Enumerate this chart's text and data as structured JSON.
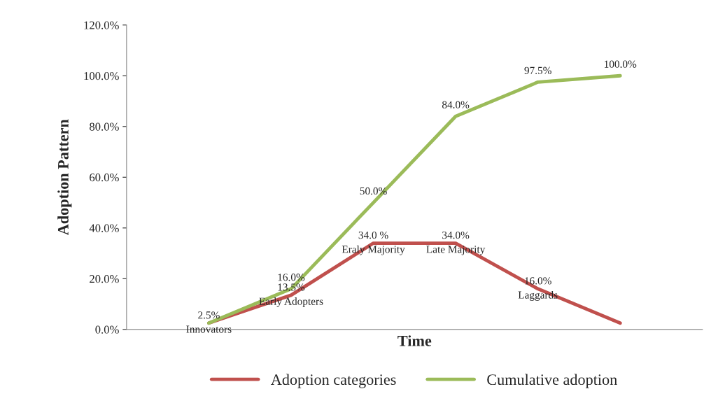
{
  "chart_data": {
    "type": "line",
    "xlabel": "Time",
    "ylabel": "Adoption Pattern",
    "categories": [
      null,
      null,
      null,
      null,
      null,
      null
    ],
    "series": [
      {
        "name": "Adoption categories",
        "color": "#c0504d",
        "values": [
          2.5,
          13.5,
          34.0,
          34.0,
          16.0,
          2.5
        ],
        "value_labels": [
          "2.5%\nInnovators",
          "13.5%\nEarly Adopters",
          "34.0 %\nEraly Majority",
          "34.0%\nLate Majority",
          "16.0%\nLaggards",
          null
        ]
      },
      {
        "name": "Cumulative adoption",
        "color": "#9bbb59",
        "values": [
          2.5,
          16.0,
          50.0,
          84.0,
          97.5,
          100.0
        ],
        "value_labels": [
          null,
          "16.0%",
          "50.0%",
          "84.0%",
          "97.5%",
          "100.0%"
        ]
      }
    ],
    "ylim": [
      0,
      120
    ],
    "yticks": [
      {
        "value": 0,
        "label": "0.0%"
      },
      {
        "value": 20,
        "label": "20.0%"
      },
      {
        "value": 40,
        "label": "40.0%"
      },
      {
        "value": 60,
        "label": "60.0%"
      },
      {
        "value": 80,
        "label": "80.0%"
      },
      {
        "value": 100,
        "label": "100.0%"
      },
      {
        "value": 120,
        "label": "120.0%"
      }
    ],
    "tick_labels": "y",
    "grid": false,
    "legend": "bottom",
    "line_style": "solid",
    "marker": "none"
  }
}
